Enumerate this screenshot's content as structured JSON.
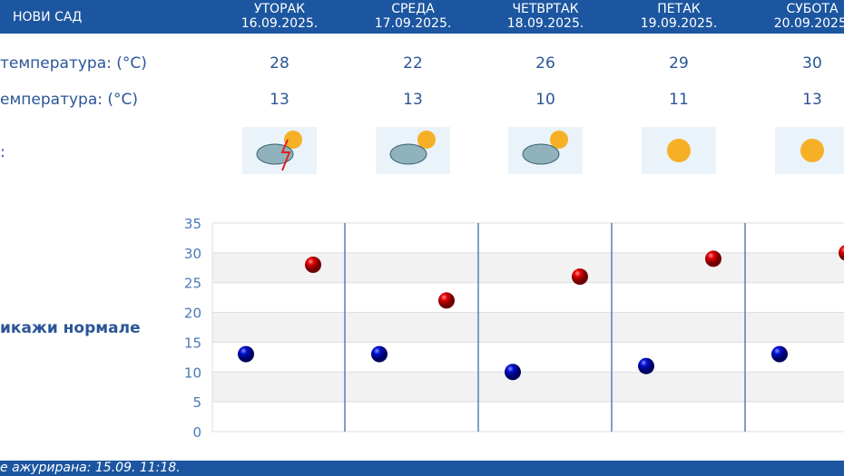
{
  "city": "НОВИ САД",
  "days": [
    {
      "name": "УТОРАК",
      "date": "16.09.2025.",
      "max": "28",
      "min": "13",
      "icon": "sun-cloud-thunderstorm-icon"
    },
    {
      "name": "СРЕДА",
      "date": "17.09.2025.",
      "max": "22",
      "min": "13",
      "icon": "sun-cloud-rain-icon"
    },
    {
      "name": "ЧЕТВРТАК",
      "date": "18.09.2025.",
      "max": "26",
      "min": "10",
      "icon": "sun-clouds-icon"
    },
    {
      "name": "ПЕТАК",
      "date": "19.09.2025.",
      "max": "29",
      "min": "11",
      "icon": "sun-icon"
    },
    {
      "name": "СУБОТА",
      "date": "20.09.2025.",
      "max": "30",
      "min": "13",
      "icon": "sun-icon"
    }
  ],
  "labels": {
    "max": "температура: (°C)",
    "min": "емпература: (°C)",
    "icon": ":"
  },
  "show_normals": "икажи нормале",
  "footer": "е ажурирана:  15.09. 11:18.",
  "colors": {
    "header": "#1c56a0",
    "max": "#d00000",
    "min": "#0010c0"
  },
  "chart_data": {
    "type": "scatter",
    "categories": [
      "16.09",
      "17.09",
      "18.09",
      "19.09",
      "20.09"
    ],
    "series": [
      {
        "name": "min",
        "values": [
          13,
          13,
          10,
          11,
          13
        ]
      },
      {
        "name": "max",
        "values": [
          28,
          22,
          26,
          29,
          30
        ]
      }
    ],
    "yticks": [
      "0",
      "5",
      "10",
      "15",
      "20",
      "25",
      "30",
      "35"
    ],
    "ylim": [
      0,
      35
    ]
  }
}
